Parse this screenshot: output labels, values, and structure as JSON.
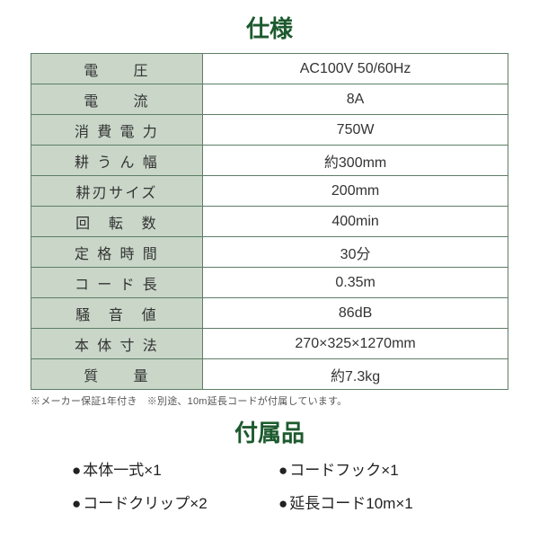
{
  "headings": {
    "spec": "仕様",
    "accessories": "付属品"
  },
  "colors": {
    "heading": "#1d5a2e",
    "border": "#5d7e66",
    "label_bg": "#c9d6c8",
    "value_bg": "#ffffff",
    "text": "#333333",
    "footnote": "#555555"
  },
  "spec_table": {
    "rows": [
      {
        "label": "電　　圧",
        "value": "AC100V 50/60Hz"
      },
      {
        "label": "電　　流",
        "value": "8A"
      },
      {
        "label": "消 費 電 力",
        "value": "750W"
      },
      {
        "label": "耕 う ん 幅",
        "value": "約300mm"
      },
      {
        "label": "耕刃サイズ",
        "value": "200mm"
      },
      {
        "label": "回　転　数",
        "value": "400min"
      },
      {
        "label": "定 格 時 間",
        "value": "30分"
      },
      {
        "label": "コ ー ド 長",
        "value": "0.35m"
      },
      {
        "label": "騒　音　値",
        "value": "86dB"
      },
      {
        "label": "本 体 寸 法",
        "value": "270×325×1270mm"
      },
      {
        "label": "質　　量",
        "value": "約7.3kg"
      }
    ]
  },
  "footnote": "※メーカー保証1年付き　※別途、10m延長コードが付属しています。",
  "accessories": {
    "bullet": "●",
    "items": [
      "本体一式×1",
      "コードフック×1",
      "コードクリップ×2",
      "延長コード10m×1"
    ]
  }
}
